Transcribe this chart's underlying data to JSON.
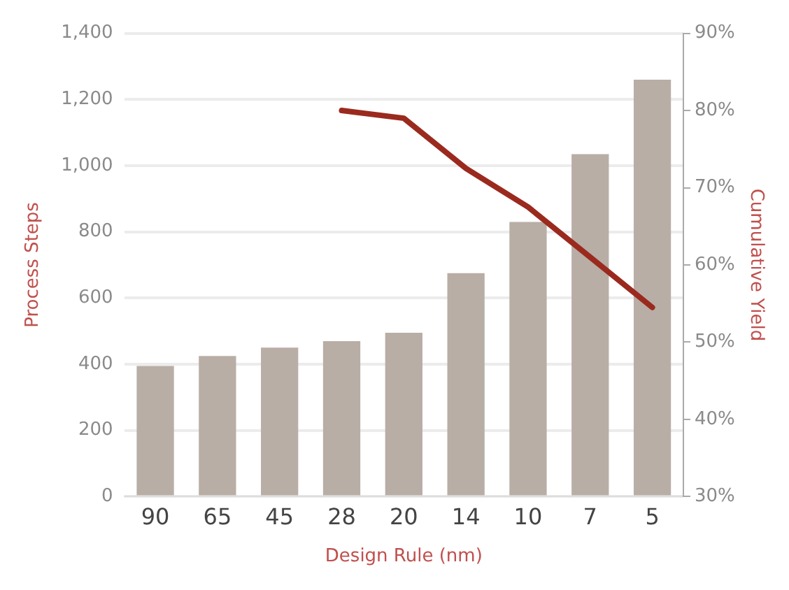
{
  "chart_data": {
    "type": "bar",
    "xlabel": "Design Rule (nm)",
    "ylabel": "Process Steps",
    "y2label": "Cumulative Yield",
    "categories": [
      "90",
      "65",
      "45",
      "28",
      "20",
      "14",
      "10",
      "7",
      "5"
    ],
    "series": [
      {
        "color": "#b8aea6",
        "values": [
          395,
          425,
          450,
          470,
          495,
          675,
          830,
          1035,
          1260
        ]
      },
      {
        "type": "line",
        "axis": "y2",
        "color": "#9b2a1e",
        "values": [
          null,
          null,
          null,
          80,
          79,
          72.5,
          67.5,
          61,
          54.5
        ]
      }
    ],
    "ylim": [
      0,
      1400
    ],
    "yticks": [
      0,
      {
        "value": 200,
        "label": "200"
      },
      {
        "value": 400,
        "label": "400"
      },
      {
        "value": 600,
        "label": "600"
      },
      {
        "value": 800,
        "label": "800"
      },
      {
        "value": 1000,
        "label": "1,000"
      },
      {
        "value": 1200,
        "label": "1,200"
      },
      {
        "value": 1400,
        "label": "1,400"
      }
    ],
    "y2lim": [
      30,
      90
    ],
    "y2ticks": [
      {
        "value": 30,
        "label": "30%"
      },
      {
        "value": 40,
        "label": "40%"
      },
      {
        "value": 50,
        "label": "50%"
      },
      {
        "value": 60,
        "label": "60%"
      },
      {
        "value": 70,
        "label": "70%"
      },
      {
        "value": 80,
        "label": "80%"
      },
      {
        "value": 90,
        "label": "90%"
      }
    ],
    "grid": "y",
    "legend": false,
    "marker": "none"
  }
}
